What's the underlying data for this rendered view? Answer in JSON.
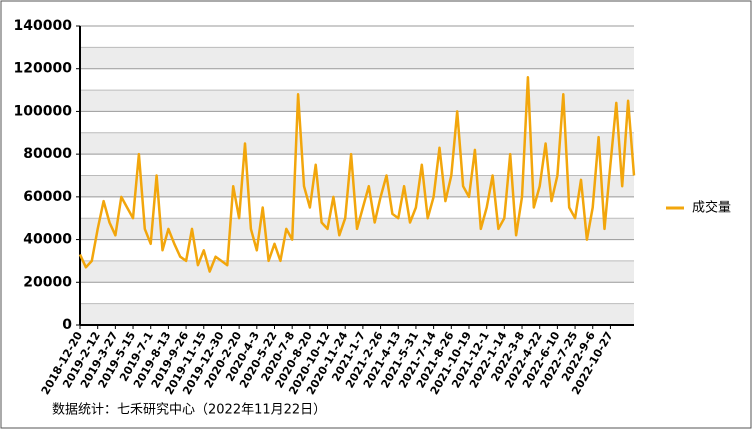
{
  "chart_data": {
    "type": "line",
    "categories": [
      "2018-12-20",
      null,
      null,
      "2019-2-12",
      null,
      null,
      "2019-3-27",
      null,
      null,
      "2019-5-15",
      null,
      null,
      "2019-7-1",
      null,
      null,
      "2019-8-13",
      null,
      null,
      "2019-9-26",
      null,
      null,
      "2019-11-15",
      null,
      null,
      "2019-12-30",
      null,
      null,
      "2020-2-20",
      null,
      null,
      "2020-4-3",
      null,
      null,
      "2020-5-22",
      null,
      null,
      "2020-7-8",
      null,
      null,
      "2020-8-20",
      null,
      null,
      "2020-10-12",
      null,
      null,
      "2020-11-24",
      null,
      null,
      "2021-1-7",
      null,
      null,
      "2021-2-26",
      null,
      null,
      "2021-4-13",
      null,
      null,
      "2021-5-31",
      null,
      null,
      "2021-7-14",
      null,
      null,
      "2021-8-26",
      null,
      null,
      "2021-10-19",
      null,
      null,
      "2021-12-1",
      null,
      null,
      "2022-1-14",
      null,
      null,
      "2022-3-8",
      null,
      null,
      "2022-4-22",
      null,
      null,
      "2022-6-10",
      null,
      null,
      "2022-7-25",
      null,
      null,
      "2022-9-6",
      null,
      null,
      "2022-10-27",
      null,
      null,
      null,
      null
    ],
    "series": [
      {
        "name": "成交量",
        "color": "#f2a60c",
        "values": [
          33000,
          27000,
          30000,
          45000,
          58000,
          48000,
          42000,
          60000,
          55000,
          50000,
          80000,
          45000,
          38000,
          70000,
          35000,
          45000,
          38000,
          32000,
          30000,
          45000,
          28000,
          35000,
          25000,
          32000,
          30000,
          28000,
          65000,
          50000,
          85000,
          45000,
          35000,
          55000,
          30000,
          38000,
          30000,
          45000,
          40000,
          108000,
          65000,
          55000,
          75000,
          48000,
          45000,
          60000,
          42000,
          50000,
          80000,
          45000,
          55000,
          65000,
          48000,
          60000,
          70000,
          52000,
          50000,
          65000,
          48000,
          55000,
          75000,
          50000,
          60000,
          83000,
          58000,
          70000,
          100000,
          65000,
          60000,
          82000,
          45000,
          55000,
          70000,
          45000,
          50000,
          80000,
          42000,
          60000,
          116000,
          55000,
          65000,
          85000,
          58000,
          70000,
          108000,
          55000,
          50000,
          68000,
          40000,
          55000,
          88000,
          45000,
          75000,
          104000,
          65000,
          105000,
          70000
        ]
      }
    ],
    "ylim": [
      0,
      140000
    ],
    "yticks": [
      0,
      20000,
      40000,
      60000,
      80000,
      100000,
      120000,
      140000
    ],
    "grid": true,
    "legend": "right",
    "source": "数据统计：七禾研究中心（2022年11月22日）"
  }
}
